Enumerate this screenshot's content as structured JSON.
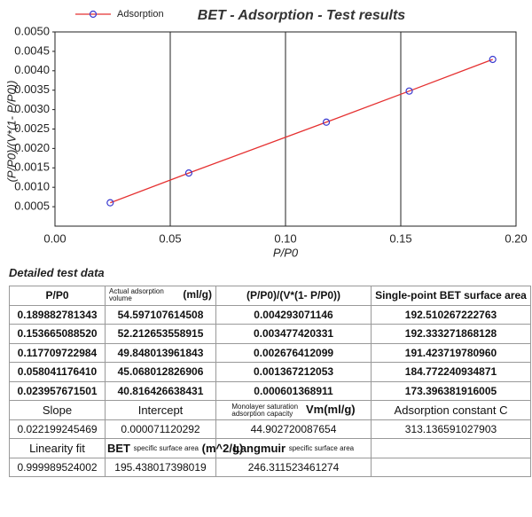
{
  "chart_data": {
    "type": "line",
    "title": "BET - Adsorption - Test results",
    "x_label": "P/P0",
    "y_label": "(P/P0)/(V*(1- P/P0))",
    "x": [
      0.023957671501,
      0.05804117641,
      0.117709722984,
      0.15366508852,
      0.189882781343
    ],
    "series": [
      {
        "name": "Adsorption",
        "color": "#e53030",
        "marker_color": "#3a3ad0",
        "values": [
          0.000601368911,
          0.001367212053,
          0.002676412099,
          0.003477420331,
          0.004293071146
        ]
      }
    ],
    "xlim": [
      0,
      0.2
    ],
    "xticks": [
      {
        "value": 0,
        "label": "0.00"
      },
      0.05,
      {
        "value": 0.1,
        "label": "0.10"
      },
      0.15,
      {
        "value": 0.2,
        "label": "0.20"
      }
    ],
    "ylim": [
      0,
      0.005
    ],
    "yticks": [
      0.0005,
      {
        "value": 0.001,
        "label": "0.0010"
      },
      0.0015,
      {
        "value": 0.002,
        "label": "0.0020"
      },
      0.0025,
      {
        "value": 0.003,
        "label": "0.0030"
      },
      0.0035,
      {
        "value": 0.004,
        "label": "0.0040"
      },
      0.0045,
      {
        "value": 0.005,
        "label": "0.0050"
      }
    ],
    "grid": "x",
    "legend": "top-left"
  },
  "table": {
    "title": "Detailed test data",
    "header": [
      "P/P0",
      {
        "note": "Actual adsorption volume",
        "text": "(ml/g)"
      },
      "(P/P0)/(V*(1- P/P0))",
      "Single-point BET surface area"
    ],
    "rows": [
      [
        "0.189882781343",
        "54.597107614508",
        "0.004293071146",
        "192.510267222763"
      ],
      [
        "0.153665088520",
        "52.212653558915",
        "0.003477420331",
        "192.333271868128"
      ],
      [
        "0.117709722984",
        "49.848013961843",
        "0.002676412099",
        "191.423719780960"
      ],
      [
        "0.058041176410",
        "45.068012826906",
        "0.001367212053",
        "184.772240934871"
      ],
      [
        "0.023957671501",
        "40.816426638431",
        "0.000601368911",
        "173.396381916005"
      ]
    ],
    "fit_header": [
      "Slope",
      "Intercept",
      {
        "note": "Monolayer saturation adsorption capacity",
        "text": "Vm(ml/g)"
      },
      "Adsorption constant C"
    ],
    "fit_values": [
      "0.022199245469",
      "0.000071120292",
      "44.902720087654",
      "313.136591027903"
    ],
    "extra_header": [
      "Linearity fit",
      {
        "pre": "BET",
        "note": "specific surface area",
        "text": "(m^2/g)"
      },
      {
        "pre": "Langmuir",
        "note": "specific surface area"
      }
    ],
    "extra_values": [
      "0.999989524002",
      "195.438017398019",
      "246.311523461274"
    ]
  }
}
